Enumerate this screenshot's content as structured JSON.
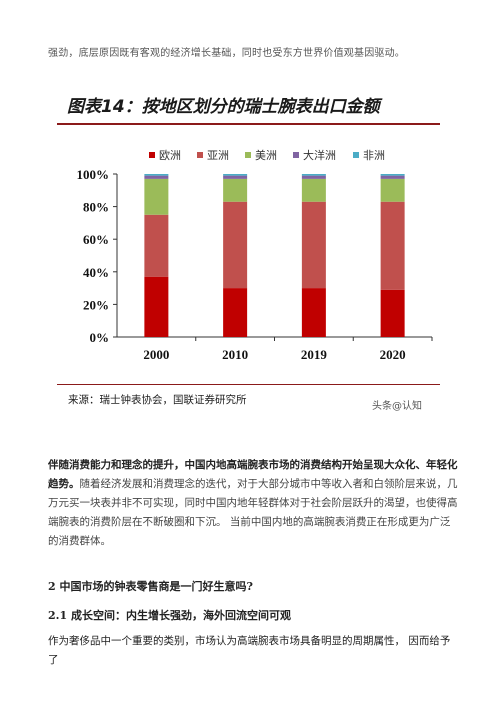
{
  "intro_line": "强劲，底层原因既有客观的经济增长基础，同时也受东方世界价值观基因驱动。",
  "figure": {
    "title": "图表14：按地区划分的瑞士腕表出口金额",
    "source": "来源：瑞士钟表协会，国联证券研究所",
    "watermark": "头条@认知"
  },
  "chart_data": {
    "type": "bar",
    "stacked": true,
    "categories": [
      "2000",
      "2010",
      "2019",
      "2020"
    ],
    "series": [
      {
        "name": "欧洲",
        "color": "#c00000",
        "values": [
          37,
          30,
          30,
          29
        ]
      },
      {
        "name": "亚洲",
        "color": "#c0504d",
        "values": [
          38,
          53,
          53,
          54
        ]
      },
      {
        "name": "美洲",
        "color": "#9bbb59",
        "values": [
          22,
          14,
          14,
          14
        ]
      },
      {
        "name": "大洋洲",
        "color": "#8064a2",
        "values": [
          2,
          2,
          2,
          2
        ]
      },
      {
        "name": "非洲",
        "color": "#4bacc6",
        "values": [
          1,
          1,
          1,
          1
        ]
      }
    ],
    "yticks": [
      "0%",
      "20%",
      "40%",
      "60%",
      "80%",
      "100%"
    ],
    "ylim": [
      0,
      100
    ],
    "legend": "top"
  },
  "para1": {
    "bold": "伴随消费能力和理念的提升，中国内地高端腕表市场的消费结构开始呈现大众化、年轻化趋势。",
    "text": "随着经济发展和消费理念的迭代，对于大部分城市中等收入者和白领阶层来说，几万元买一块表并非不可实现，同时中国内地年轻群体对于社会阶层跃升的渴望，也使得高端腕表的消费阶层在不断破圈和下沉。 当前中国内地的高端腕表消费正在形成更为广泛的消费群体。"
  },
  "heading2": "2 中国市场的钟表零售商是一门好生意吗?",
  "heading21": "2.1 成长空间：内生增长强劲，海外回流空间可观",
  "para2": "作为奢侈品中一个重要的类别，市场认为高端腕表市场具备明显的周期属性， 因而给予了"
}
